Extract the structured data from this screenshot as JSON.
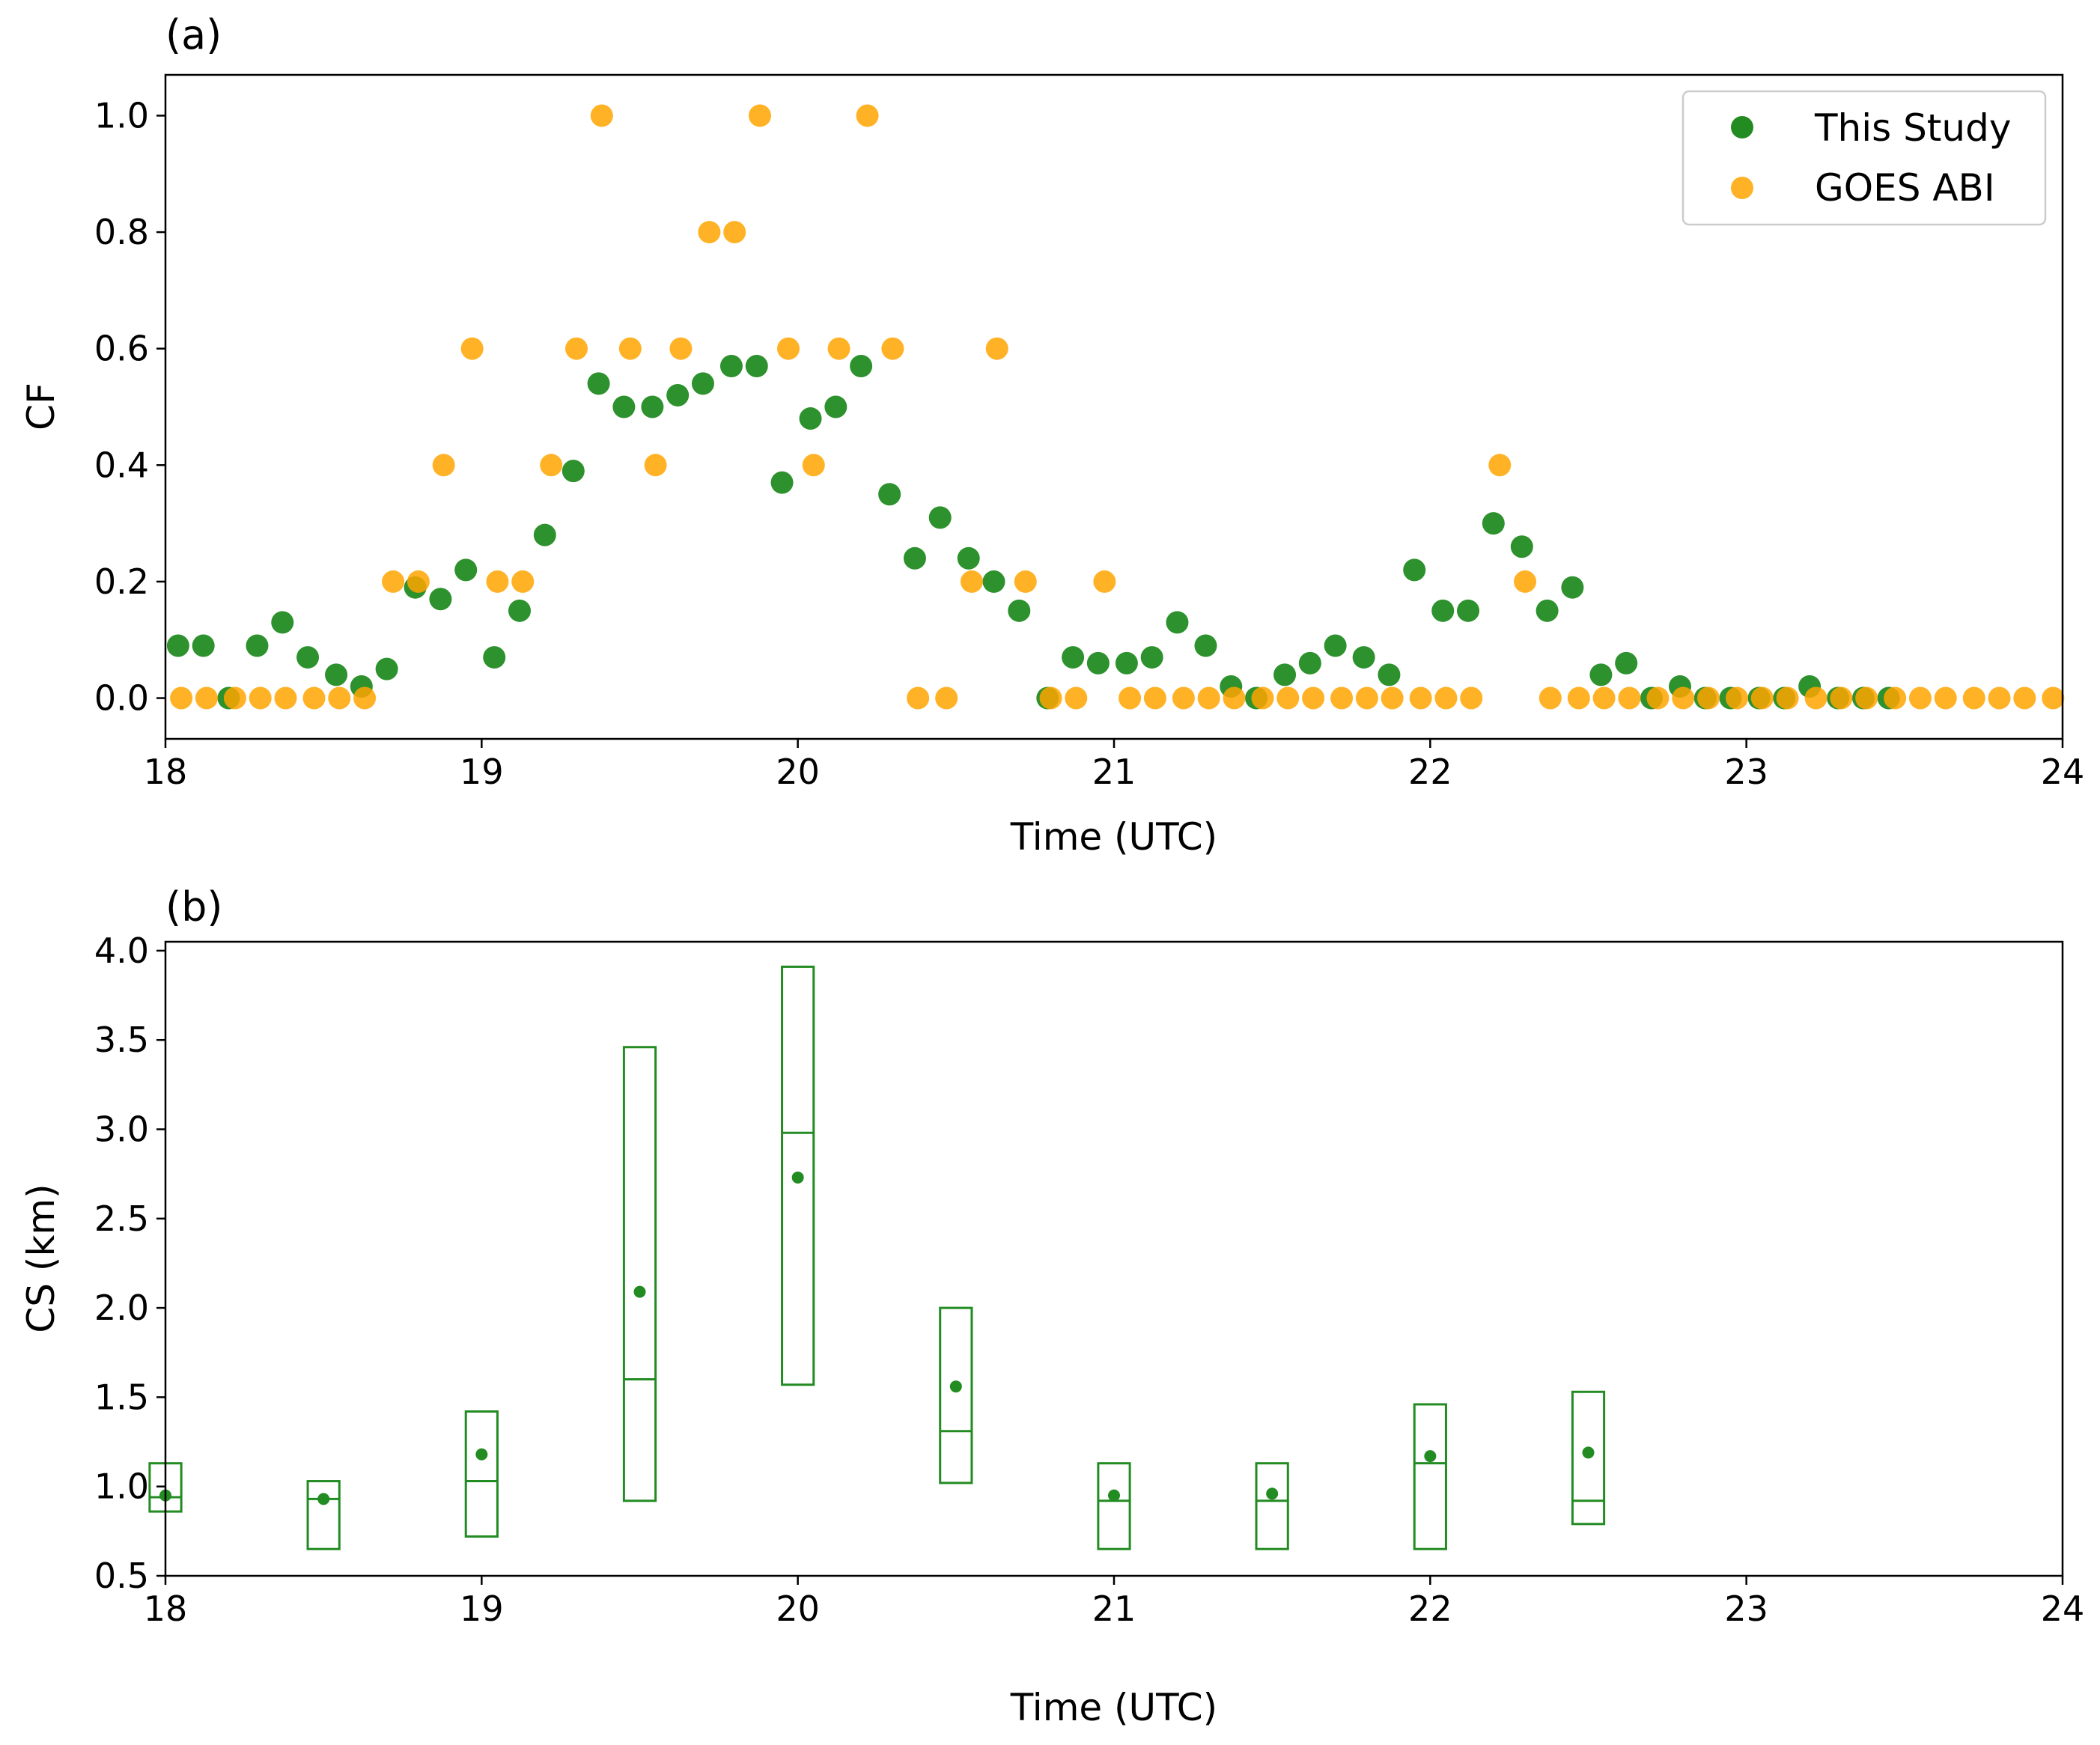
{
  "chart_data": [
    {
      "panel_label": "(a)",
      "type": "scatter",
      "xlabel": "Time (UTC)",
      "ylabel": "CF",
      "xlim": [
        18,
        24
      ],
      "ylim": [
        -0.07,
        1.07
      ],
      "xticks": [
        18,
        19,
        20,
        21,
        22,
        23,
        24
      ],
      "xtick_labels": [
        "18",
        "19",
        "20",
        "21",
        "22",
        "23",
        "24"
      ],
      "yticks": [
        0.0,
        0.2,
        0.4,
        0.6,
        0.8,
        1.0
      ],
      "ytick_labels": [
        "0.0",
        "0.2",
        "0.4",
        "0.6",
        "0.8",
        "1.0"
      ],
      "legend_position": "top-right",
      "series": [
        {
          "name": "This Study",
          "color": "#228b22",
          "x": [
            18.04,
            18.12,
            18.2,
            18.29,
            18.37,
            18.45,
            18.54,
            18.62,
            18.7,
            18.79,
            18.87,
            18.95,
            19.04,
            19.12,
            19.2,
            19.29,
            19.37,
            19.45,
            19.54,
            19.62,
            19.7,
            19.79,
            19.87,
            19.95,
            20.04,
            20.12,
            20.2,
            20.29,
            20.37,
            20.45,
            20.54,
            20.62,
            20.7,
            20.79,
            20.87,
            20.95,
            21.04,
            21.12,
            21.2,
            21.29,
            21.37,
            21.45,
            21.54,
            21.62,
            21.7,
            21.79,
            21.87,
            21.95,
            22.04,
            22.12,
            22.2,
            22.29,
            22.37,
            22.45,
            22.54,
            22.62,
            22.7,
            22.79,
            22.87,
            22.95,
            23.04,
            23.12,
            23.2,
            23.29,
            23.37,
            23.45
          ],
          "y": [
            0.09,
            0.09,
            0.0,
            0.09,
            0.13,
            0.07,
            0.04,
            0.02,
            0.05,
            0.19,
            0.17,
            0.22,
            0.07,
            0.15,
            0.28,
            0.39,
            0.54,
            0.5,
            0.5,
            0.52,
            0.54,
            0.57,
            0.57,
            0.37,
            0.48,
            0.5,
            0.57,
            0.35,
            0.24,
            0.31,
            0.24,
            0.2,
            0.15,
            0.0,
            0.07,
            0.06,
            0.06,
            0.07,
            0.13,
            0.09,
            0.02,
            0.0,
            0.04,
            0.06,
            0.09,
            0.07,
            0.04,
            0.22,
            0.15,
            0.15,
            0.3,
            0.26,
            0.15,
            0.19,
            0.04,
            0.06,
            0.0,
            0.02,
            0.0,
            0.0,
            0.0,
            0.0,
            0.02,
            0.0,
            0.0,
            0.0
          ]
        },
        {
          "name": "GOES ABI",
          "color": "#ffa500",
          "x": [
            18.05,
            18.13,
            18.22,
            18.3,
            18.38,
            18.47,
            18.55,
            18.63,
            18.72,
            18.8,
            18.88,
            18.97,
            19.05,
            19.13,
            19.22,
            19.3,
            19.38,
            19.47,
            19.55,
            19.63,
            19.72,
            19.8,
            19.88,
            19.97,
            20.05,
            20.13,
            20.22,
            20.3,
            20.38,
            20.47,
            20.55,
            20.63,
            20.72,
            20.8,
            20.88,
            20.97,
            21.05,
            21.13,
            21.22,
            21.3,
            21.38,
            21.47,
            21.55,
            21.63,
            21.72,
            21.8,
            21.88,
            21.97,
            22.05,
            22.13,
            22.22,
            22.3,
            22.38,
            22.47,
            22.55,
            22.63,
            22.72,
            22.8,
            22.88,
            22.97,
            23.05,
            23.13,
            23.22,
            23.3,
            23.38,
            23.47,
            23.55,
            23.63,
            23.72,
            23.8,
            23.88,
            23.97
          ],
          "y": [
            0.0,
            0.0,
            0.0,
            0.0,
            0.0,
            0.0,
            0.0,
            0.0,
            0.2,
            0.2,
            0.4,
            0.6,
            0.2,
            0.2,
            0.4,
            0.6,
            1.0,
            0.6,
            0.4,
            0.6,
            0.8,
            0.8,
            1.0,
            0.6,
            0.4,
            0.6,
            1.0,
            0.6,
            0.0,
            0.0,
            0.2,
            0.6,
            0.2,
            0.0,
            0.0,
            0.2,
            0.0,
            0.0,
            0.0,
            0.0,
            0.0,
            0.0,
            0.0,
            0.0,
            0.0,
            0.0,
            0.0,
            0.0,
            0.0,
            0.0,
            0.4,
            0.2,
            0.0,
            0.0,
            0.0,
            0.0,
            0.0,
            0.0,
            0.0,
            0.0,
            0.0,
            0.0,
            0.0,
            0.0,
            0.0,
            0.0,
            0.0,
            0.0,
            0.0,
            0.0,
            0.0,
            0.0
          ]
        }
      ]
    },
    {
      "panel_label": "(b)",
      "type": "box",
      "xlabel": "Time (UTC)",
      "ylabel": "CS (km)",
      "xlim": [
        18,
        24
      ],
      "ylim": [
        0.5,
        4.05
      ],
      "xticks": [
        18,
        19,
        20,
        21,
        22,
        23,
        24
      ],
      "xtick_labels": [
        "18",
        "19",
        "20",
        "21",
        "22",
        "23",
        "24"
      ],
      "yticks": [
        0.5,
        1.0,
        1.5,
        2.0,
        2.5,
        3.0,
        3.5,
        4.0
      ],
      "ytick_labels": [
        "0.5",
        "1.0",
        "1.5",
        "2.0",
        "2.5",
        "3.0",
        "3.5",
        "4.0"
      ],
      "color": "#228b22",
      "box_width_hours": 0.1,
      "boxes": [
        {
          "x": 18.0,
          "q1": 0.86,
          "q3": 1.13,
          "median": 0.94,
          "mean": 0.95
        },
        {
          "x": 18.5,
          "q1": 0.65,
          "q3": 1.03,
          "median": 0.93,
          "mean": 0.93
        },
        {
          "x": 19.0,
          "q1": 0.72,
          "q3": 1.42,
          "median": 1.03,
          "mean": 1.18
        },
        {
          "x": 19.5,
          "q1": 0.92,
          "q3": 3.46,
          "median": 1.6,
          "mean": 2.09
        },
        {
          "x": 20.0,
          "q1": 1.57,
          "q3": 3.91,
          "median": 2.98,
          "mean": 2.73
        },
        {
          "x": 20.5,
          "q1": 1.02,
          "q3": 2.0,
          "median": 1.31,
          "mean": 1.56
        },
        {
          "x": 21.0,
          "q1": 0.65,
          "q3": 1.13,
          "median": 0.92,
          "mean": 0.95
        },
        {
          "x": 21.5,
          "q1": 0.65,
          "q3": 1.13,
          "median": 0.92,
          "mean": 0.96
        },
        {
          "x": 22.0,
          "q1": 0.65,
          "q3": 1.46,
          "median": 1.13,
          "mean": 1.17
        },
        {
          "x": 22.5,
          "q1": 0.79,
          "q3": 1.53,
          "median": 0.92,
          "mean": 1.19
        }
      ]
    }
  ]
}
